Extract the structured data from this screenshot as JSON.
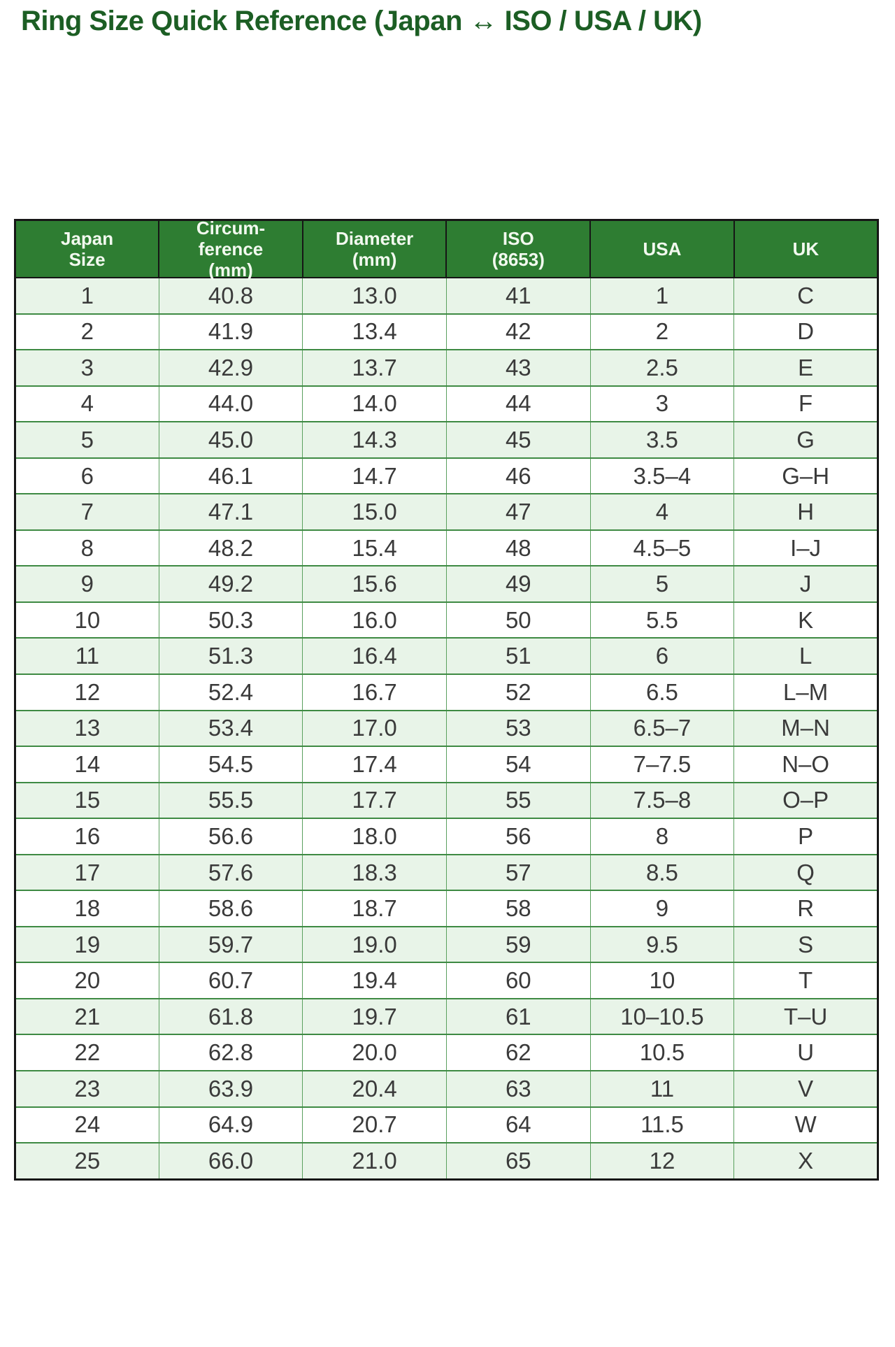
{
  "title": "Ring Size Quick Reference (Japan ↔ ISO / USA / UK)",
  "colors": {
    "title_text": "#1c5e24",
    "header_bg": "#2e7d32",
    "header_text": "#f2f9ef",
    "row_stripe_bg": "#e8f4e8",
    "row_bg": "#ffffff",
    "body_text": "#3a3a3a",
    "body_grid": "#3e8a43",
    "outer_border": "#161616"
  },
  "chart_data": {
    "type": "table",
    "title": "Ring Size Quick Reference (Japan ↔ ISO / USA / UK)",
    "columns": [
      "Japan\nSize",
      "Circum-\nference\n(mm)",
      "Diameter\n(mm)",
      "ISO\n(8653)",
      "USA",
      "UK"
    ],
    "rows": [
      [
        "1",
        "40.8",
        "13.0",
        "41",
        "1",
        "C"
      ],
      [
        "2",
        "41.9",
        "13.4",
        "42",
        "2",
        "D"
      ],
      [
        "3",
        "42.9",
        "13.7",
        "43",
        "2.5",
        "E"
      ],
      [
        "4",
        "44.0",
        "14.0",
        "44",
        "3",
        "F"
      ],
      [
        "5",
        "45.0",
        "14.3",
        "45",
        "3.5",
        "G"
      ],
      [
        "6",
        "46.1",
        "14.7",
        "46",
        "3.5–4",
        "G–H"
      ],
      [
        "7",
        "47.1",
        "15.0",
        "47",
        "4",
        "H"
      ],
      [
        "8",
        "48.2",
        "15.4",
        "48",
        "4.5–5",
        "I–J"
      ],
      [
        "9",
        "49.2",
        "15.6",
        "49",
        "5",
        "J"
      ],
      [
        "10",
        "50.3",
        "16.0",
        "50",
        "5.5",
        "K"
      ],
      [
        "11",
        "51.3",
        "16.4",
        "51",
        "6",
        "L"
      ],
      [
        "12",
        "52.4",
        "16.7",
        "52",
        "6.5",
        "L–M"
      ],
      [
        "13",
        "53.4",
        "17.0",
        "53",
        "6.5–7",
        "M–N"
      ],
      [
        "14",
        "54.5",
        "17.4",
        "54",
        "7–7.5",
        "N–O"
      ],
      [
        "15",
        "55.5",
        "17.7",
        "55",
        "7.5–8",
        "O–P"
      ],
      [
        "16",
        "56.6",
        "18.0",
        "56",
        "8",
        "P"
      ],
      [
        "17",
        "57.6",
        "18.3",
        "57",
        "8.5",
        "Q"
      ],
      [
        "18",
        "58.6",
        "18.7",
        "58",
        "9",
        "R"
      ],
      [
        "19",
        "59.7",
        "19.0",
        "59",
        "9.5",
        "S"
      ],
      [
        "20",
        "60.7",
        "19.4",
        "60",
        "10",
        "T"
      ],
      [
        "21",
        "61.8",
        "19.7",
        "61",
        "10–10.5",
        "T–U"
      ],
      [
        "22",
        "62.8",
        "20.0",
        "62",
        "10.5",
        "U"
      ],
      [
        "23",
        "63.9",
        "20.4",
        "63",
        "11",
        "V"
      ],
      [
        "24",
        "64.9",
        "20.7",
        "64",
        "11.5",
        "W"
      ],
      [
        "25",
        "66.0",
        "21.0",
        "65",
        "12",
        "X"
      ]
    ]
  }
}
